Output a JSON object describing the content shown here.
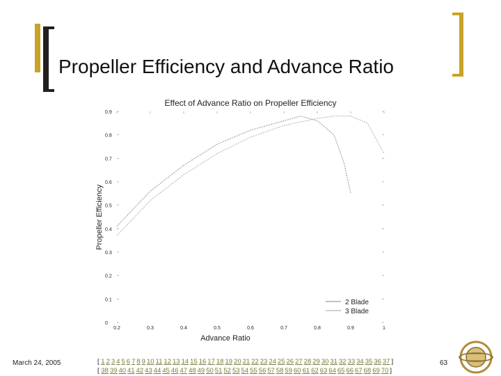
{
  "slide": {
    "title": "Propeller Efficiency and Advance Ratio",
    "date": "March 24, 2005",
    "page_number": "63",
    "nav_line1": [
      "1",
      "2",
      "3",
      "4",
      "5",
      "6",
      "7",
      "8",
      "9",
      "10",
      "11",
      "12",
      "13",
      "14",
      "15",
      "16",
      "17",
      "18",
      "19",
      "20",
      "21",
      "22",
      "23",
      "24",
      "25",
      "26",
      "27",
      "28",
      "29",
      "30",
      "31",
      "32",
      "33",
      "34",
      "35",
      "36",
      "37"
    ],
    "nav_line2": [
      "38",
      "39",
      "40",
      "41",
      "42",
      "43",
      "44",
      "45",
      "46",
      "47",
      "48",
      "49",
      "50",
      "51",
      "52",
      "53",
      "54",
      "55",
      "56",
      "57",
      "58",
      "59",
      "60",
      "61",
      "62",
      "63",
      "64",
      "65",
      "66",
      "67",
      "68",
      "69",
      "70"
    ],
    "colors": {
      "accent_gold": "#c9a227",
      "bracket_dark": "#231f20",
      "link": "#7a7a3a"
    }
  },
  "chart_data": {
    "type": "line",
    "title": "Effect of Advance Ratio on Propeller Efficiency",
    "xlabel": "Advance Ratio",
    "ylabel": "Propeller Efficiency",
    "xlim": [
      0.2,
      1.0
    ],
    "ylim": [
      0,
      0.9
    ],
    "xticks": [
      "0.2",
      "0.3",
      "0.4",
      "0.5",
      "0.6",
      "0.7",
      "0.8",
      "0.9",
      "1"
    ],
    "yticks": [
      "0",
      "0.1",
      "0.2",
      "0.3",
      "0.4",
      "0.5",
      "0.6",
      "0.7",
      "0.8",
      "0.9"
    ],
    "legend_position": "bottom-right",
    "grid": false,
    "series": [
      {
        "name": "2 Blade",
        "color": "#9a9a9a",
        "x": [
          0.2,
          0.3,
          0.4,
          0.5,
          0.6,
          0.7,
          0.75,
          0.8,
          0.85,
          0.88,
          0.9
        ],
        "y": [
          0.41,
          0.56,
          0.67,
          0.76,
          0.82,
          0.86,
          0.88,
          0.86,
          0.8,
          0.68,
          0.55
        ]
      },
      {
        "name": "3 Blade",
        "color": "#b5b5b5",
        "x": [
          0.2,
          0.3,
          0.4,
          0.5,
          0.6,
          0.7,
          0.8,
          0.85,
          0.9,
          0.95,
          1.0
        ],
        "y": [
          0.37,
          0.52,
          0.63,
          0.72,
          0.79,
          0.84,
          0.87,
          0.88,
          0.88,
          0.85,
          0.72
        ]
      }
    ]
  }
}
